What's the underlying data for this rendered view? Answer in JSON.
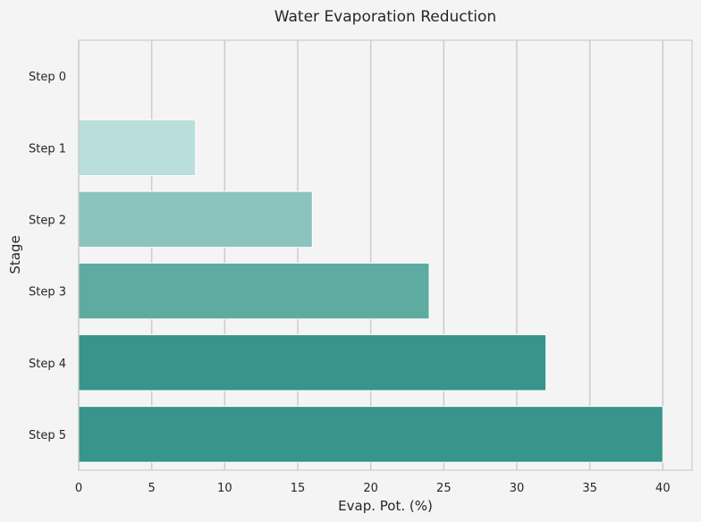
{
  "chart_data": {
    "type": "bar",
    "orientation": "horizontal",
    "title": "Water Evaporation Reduction",
    "xlabel": "Evap. Pot. (%)",
    "ylabel": "Stage",
    "categories": [
      "Step 0",
      "Step 1",
      "Step 2",
      "Step 3",
      "Step 4",
      "Step 5"
    ],
    "values": [
      0,
      8,
      16,
      24,
      32,
      40
    ],
    "xlim": [
      0,
      42
    ],
    "xticks": [
      0,
      5,
      10,
      15,
      20,
      25,
      30,
      35,
      40
    ],
    "grid": "vertical",
    "colors": [
      "#d8efee",
      "#b9dedb",
      "#8cc3bc",
      "#5daba1",
      "#37958b",
      "#37958b"
    ],
    "background": "#f4f4f4",
    "grid_color": "#cccccc"
  }
}
